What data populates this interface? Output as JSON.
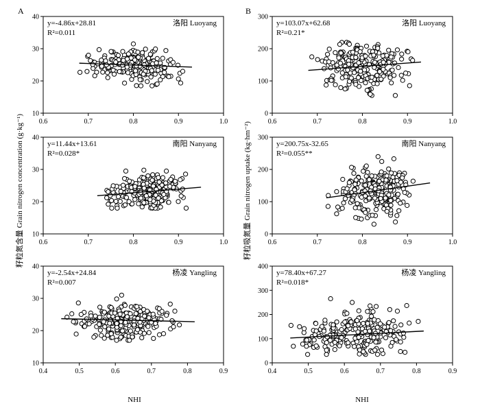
{
  "figure": {
    "panel_letters": [
      "A",
      "B"
    ],
    "ylabel_left": "籽粒氮含量 Grain nitrogen concentration (g·kg⁻¹)",
    "ylabel_right": "籽粒吸氮量 Grain nitrogen uptake (kg·hm⁻²)",
    "xlabel": "NHI"
  },
  "chart_data": [
    {
      "type": "scatter",
      "column": "A",
      "row": 0,
      "title": "洛阳 Luoyang",
      "equation": "y=-4.86x+28.81",
      "r2": "R²=0.011",
      "xlim": [
        0.6,
        1.0
      ],
      "xticks": [
        0.6,
        0.7,
        0.8,
        0.9,
        1.0
      ],
      "ylim": [
        10,
        40
      ],
      "yticks": [
        10,
        20,
        30,
        40
      ],
      "fit": {
        "slope": -4.86,
        "intercept": 28.81,
        "x_range": [
          0.68,
          0.93
        ]
      },
      "points": {
        "n": 230,
        "x_range": [
          0.68,
          0.93
        ],
        "y_mean": 24.8,
        "y_sd": 2.5,
        "y_range": [
          18.5,
          31.5
        ]
      }
    },
    {
      "type": "scatter",
      "column": "B",
      "row": 0,
      "title": "洛阳 Luoyang",
      "equation": "y=103.07x+62.68",
      "r2": "R²=0.21*",
      "xlim": [
        0.6,
        1.0
      ],
      "xticks": [
        0.6,
        0.7,
        0.8,
        0.9,
        1.0
      ],
      "ylim": [
        0,
        300
      ],
      "yticks": [
        0,
        100,
        200,
        300
      ],
      "fit": {
        "slope": 103.07,
        "intercept": 62.68,
        "x_range": [
          0.68,
          0.93
        ]
      },
      "points": {
        "n": 230,
        "x_range": [
          0.68,
          0.93
        ],
        "y_mean": 147,
        "y_sd": 38,
        "y_range": [
          55,
          255
        ]
      }
    },
    {
      "type": "scatter",
      "column": "A",
      "row": 1,
      "title": "南阳 Nanyang",
      "equation": "y=11.44x+13.61",
      "r2": "R²=0.028*",
      "xlim": [
        0.6,
        1.0
      ],
      "xticks": [
        0.6,
        0.7,
        0.8,
        0.9,
        1.0
      ],
      "ylim": [
        10,
        40
      ],
      "yticks": [
        10,
        20,
        30,
        40
      ],
      "fit": {
        "slope": 11.44,
        "intercept": 13.61,
        "x_range": [
          0.72,
          0.95
        ]
      },
      "points": {
        "n": 230,
        "x_range": [
          0.72,
          0.95
        ],
        "y_mean": 23.0,
        "y_sd": 2.7,
        "y_range": [
          18,
          37
        ]
      }
    },
    {
      "type": "scatter",
      "column": "B",
      "row": 1,
      "title": "南阳 Nanyang",
      "equation": "y=200.75x-32.65",
      "r2": "R²=0.055**",
      "xlim": [
        0.6,
        1.0
      ],
      "xticks": [
        0.6,
        0.7,
        0.8,
        0.9,
        1.0
      ],
      "ylim": [
        0,
        300
      ],
      "yticks": [
        0,
        100,
        200,
        300
      ],
      "fit": {
        "slope": 200.75,
        "intercept": -32.65,
        "x_range": [
          0.72,
          0.95
        ]
      },
      "points": {
        "n": 230,
        "x_range": [
          0.72,
          0.95
        ],
        "y_mean": 135,
        "y_sd": 40,
        "y_range": [
          30,
          245
        ]
      }
    },
    {
      "type": "scatter",
      "column": "A",
      "row": 2,
      "title": "杨凌 Yangling",
      "equation": "y=-2.54x+24.84",
      "r2": "R²=0.007",
      "xlim": [
        0.4,
        0.9
      ],
      "xticks": [
        0.4,
        0.5,
        0.6,
        0.7,
        0.8,
        0.9
      ],
      "ylim": [
        10,
        40
      ],
      "yticks": [
        10,
        20,
        30,
        40
      ],
      "fit": {
        "slope": -2.54,
        "intercept": 24.84,
        "x_range": [
          0.45,
          0.82
        ]
      },
      "points": {
        "n": 240,
        "x_range": [
          0.45,
          0.82
        ],
        "y_mean": 23.0,
        "y_sd": 2.8,
        "y_range": [
          17,
          31
        ]
      }
    },
    {
      "type": "scatter",
      "column": "B",
      "row": 2,
      "title": "杨凌 Yangling",
      "equation": "y=78.40x+67.27",
      "r2": "R²=0.018*",
      "xlim": [
        0.4,
        0.9
      ],
      "xticks": [
        0.4,
        0.5,
        0.6,
        0.7,
        0.8,
        0.9
      ],
      "ylim": [
        0,
        400
      ],
      "yticks": [
        0,
        100,
        200,
        300,
        400
      ],
      "fit": {
        "slope": 78.4,
        "intercept": 67.27,
        "x_range": [
          0.45,
          0.82
        ]
      },
      "points": {
        "n": 240,
        "x_range": [
          0.45,
          0.82
        ],
        "y_mean": 118,
        "y_sd": 45,
        "y_range": [
          35,
          280
        ]
      }
    }
  ]
}
